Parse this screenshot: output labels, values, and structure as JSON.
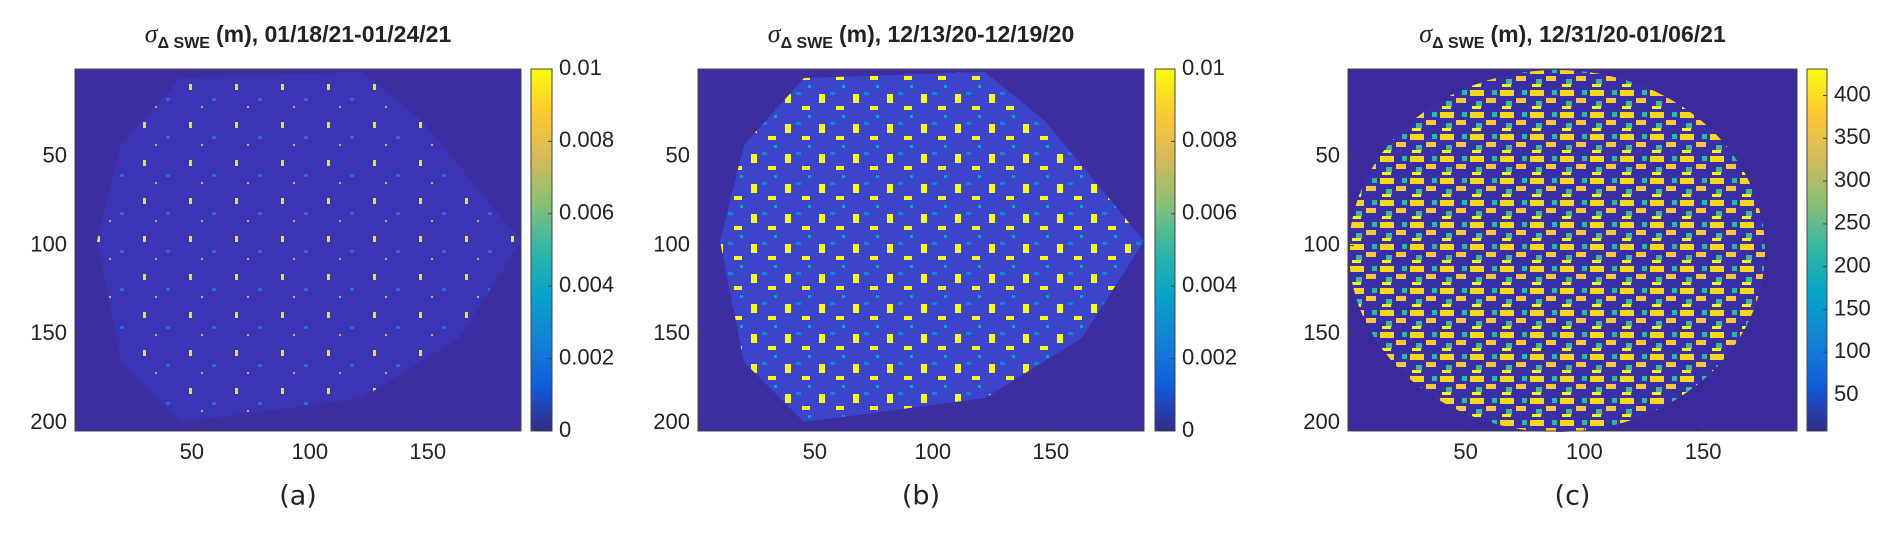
{
  "chart_data": [
    {
      "type": "heatmap",
      "title_symbol": "σ",
      "title_subscript": "Δ SWE",
      "title": "(m), 01/18/21-01/24/21",
      "panel_label": "(a)",
      "xlim": [
        0.5,
        189.5
      ],
      "xticks": [
        50,
        100,
        150
      ],
      "ylim": [
        0.5,
        204.5
      ],
      "yticks": [
        50,
        100,
        150,
        200
      ],
      "y_reversed": true,
      "colormap": "parula",
      "clim": [
        0,
        0.01
      ],
      "cticks": [
        0,
        0.002,
        0.004,
        0.006,
        0.008,
        0.01
      ]
    },
    {
      "type": "heatmap",
      "title_symbol": "σ",
      "title_subscript": "Δ SWE",
      "title": "(m), 12/13/20-12/19/20",
      "panel_label": "(b)",
      "xlim": [
        0.5,
        189.5
      ],
      "xticks": [
        50,
        100,
        150
      ],
      "ylim": [
        0.5,
        204.5
      ],
      "yticks": [
        50,
        100,
        150,
        200
      ],
      "y_reversed": true,
      "colormap": "parula",
      "clim": [
        0,
        0.01
      ],
      "cticks": [
        0,
        0.002,
        0.004,
        0.006,
        0.008,
        0.01
      ]
    },
    {
      "type": "heatmap",
      "title_symbol": "σ",
      "title_subscript": "Δ SWE",
      "title": "(m), 12/31/20-01/06/21",
      "panel_label": "(c)",
      "xlim": [
        0.5,
        189.5
      ],
      "xticks": [
        50,
        100,
        150
      ],
      "ylim": [
        0.5,
        204.5
      ],
      "yticks": [
        50,
        100,
        150,
        200
      ],
      "y_reversed": true,
      "colormap": "parula",
      "clim": [
        8,
        431
      ],
      "cticks": [
        50,
        100,
        150,
        200,
        250,
        300,
        350,
        400
      ]
    }
  ]
}
